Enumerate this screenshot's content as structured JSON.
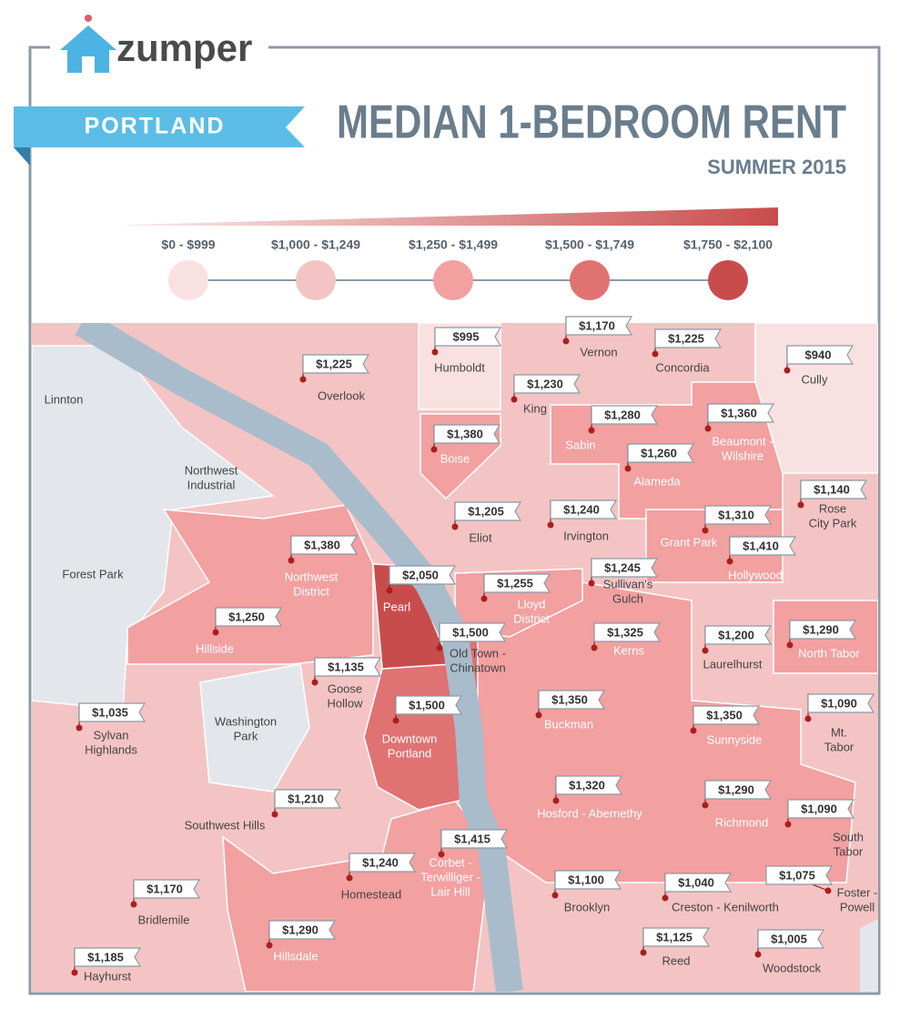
{
  "brand": "zumper",
  "city": "PORTLAND",
  "title": "MEDIAN 1-BEDROOM RENT",
  "subtitle": "SUMMER 2015",
  "legend": [
    "$0 - $999",
    "$1,000 - $1,249",
    "$1,250 - $1,499",
    "$1,500 - $1,749",
    "$1,750 - $2,100"
  ],
  "neighborhoods": [
    {
      "name": [
        "Overlook"
      ],
      "rent": "$1,225"
    },
    {
      "name": [
        "Humboldt"
      ],
      "rent": "$995"
    },
    {
      "name": [
        "Vernon"
      ],
      "rent": "$1,170"
    },
    {
      "name": [
        "Concordia"
      ],
      "rent": "$1,225"
    },
    {
      "name": [
        "Cully"
      ],
      "rent": "$940"
    },
    {
      "name": [
        "King"
      ],
      "rent": "$1,230"
    },
    {
      "name": [
        "Linnton"
      ]
    },
    {
      "name": [
        "Northwest",
        "Industrial"
      ]
    },
    {
      "name": [
        "Boise"
      ],
      "rent": "$1,380"
    },
    {
      "name": [
        "Sabin"
      ],
      "rent": "$1,280"
    },
    {
      "name": [
        "Beaumont -",
        "Wilshire"
      ],
      "rent": "$1,360"
    },
    {
      "name": [
        "Alameda"
      ],
      "rent": "$1,260"
    },
    {
      "name": [
        "Eliot"
      ],
      "rent": "$1,205"
    },
    {
      "name": [
        "Irvington"
      ],
      "rent": "$1,240"
    },
    {
      "name": [
        "Rose",
        "City Park"
      ],
      "rent": "$1,140"
    },
    {
      "name": [
        "Grant Park"
      ],
      "rent": "$1,310"
    },
    {
      "name": [
        "Hollywood"
      ],
      "rent": "$1,410"
    },
    {
      "name": [
        "Forest Park"
      ]
    },
    {
      "name": [
        "Northwest",
        "District"
      ],
      "rent": "$1,380"
    },
    {
      "name": [
        "Pearl"
      ],
      "rent": "$2,050"
    },
    {
      "name": [
        "Lloyd",
        "District"
      ],
      "rent": "$1,255"
    },
    {
      "name": [
        "Sullivan's",
        "Gulch"
      ],
      "rent": "$1,245"
    },
    {
      "name": [
        "Hillside"
      ],
      "rent": "$1,250"
    },
    {
      "name": [
        "Old Town -",
        "Chinatown"
      ],
      "rent": "$1,500"
    },
    {
      "name": [
        "Kerns"
      ],
      "rent": "$1,325"
    },
    {
      "name": [
        "Laurelhurst"
      ],
      "rent": "$1,200"
    },
    {
      "name": [
        "North Tabor"
      ],
      "rent": "$1,290"
    },
    {
      "name": [
        "Goose",
        "Hollow"
      ],
      "rent": "$1,135"
    },
    {
      "name": [
        "Sylvan",
        "Highlands"
      ],
      "rent": "$1,035"
    },
    {
      "name": [
        "Washington",
        "Park"
      ]
    },
    {
      "name": [
        "Downtown",
        "Portland"
      ],
      "rent": "$1,500"
    },
    {
      "name": [
        "Buckman"
      ],
      "rent": "$1,350"
    },
    {
      "name": [
        "Sunnyside"
      ],
      "rent": "$1,350"
    },
    {
      "name": [
        "Mt.",
        "Tabor"
      ],
      "rent": "$1,090"
    },
    {
      "name": [
        "Southwest Hills"
      ],
      "rent": "$1,210"
    },
    {
      "name": [
        "Hosford - Abernethy"
      ],
      "rent": "$1,320"
    },
    {
      "name": [
        "Richmond"
      ],
      "rent": "$1,290"
    },
    {
      "name": [
        "South",
        "Tabor"
      ],
      "rent": "$1,090"
    },
    {
      "name": [
        "Corbet -",
        "Terwilliger -",
        "Lair Hill"
      ],
      "rent": "$1,415"
    },
    {
      "name": [
        "Homestead"
      ],
      "rent": "$1,240"
    },
    {
      "name": [
        "Foster -",
        "Powell"
      ],
      "rent": "$1,075"
    },
    {
      "name": [
        "Brooklyn"
      ],
      "rent": "$1,100"
    },
    {
      "name": [
        "Creston - Kenilworth"
      ],
      "rent": "$1,040"
    },
    {
      "name": [
        "Bridlemile"
      ],
      "rent": "$1,170"
    },
    {
      "name": [
        "Hillsdale"
      ],
      "rent": "$1,290"
    },
    {
      "name": [
        "Reed"
      ],
      "rent": "$1,125"
    },
    {
      "name": [
        "Woodstock"
      ],
      "rent": "$1,005"
    },
    {
      "name": [
        "Hayhurst"
      ],
      "rent": "$1,185"
    }
  ]
}
